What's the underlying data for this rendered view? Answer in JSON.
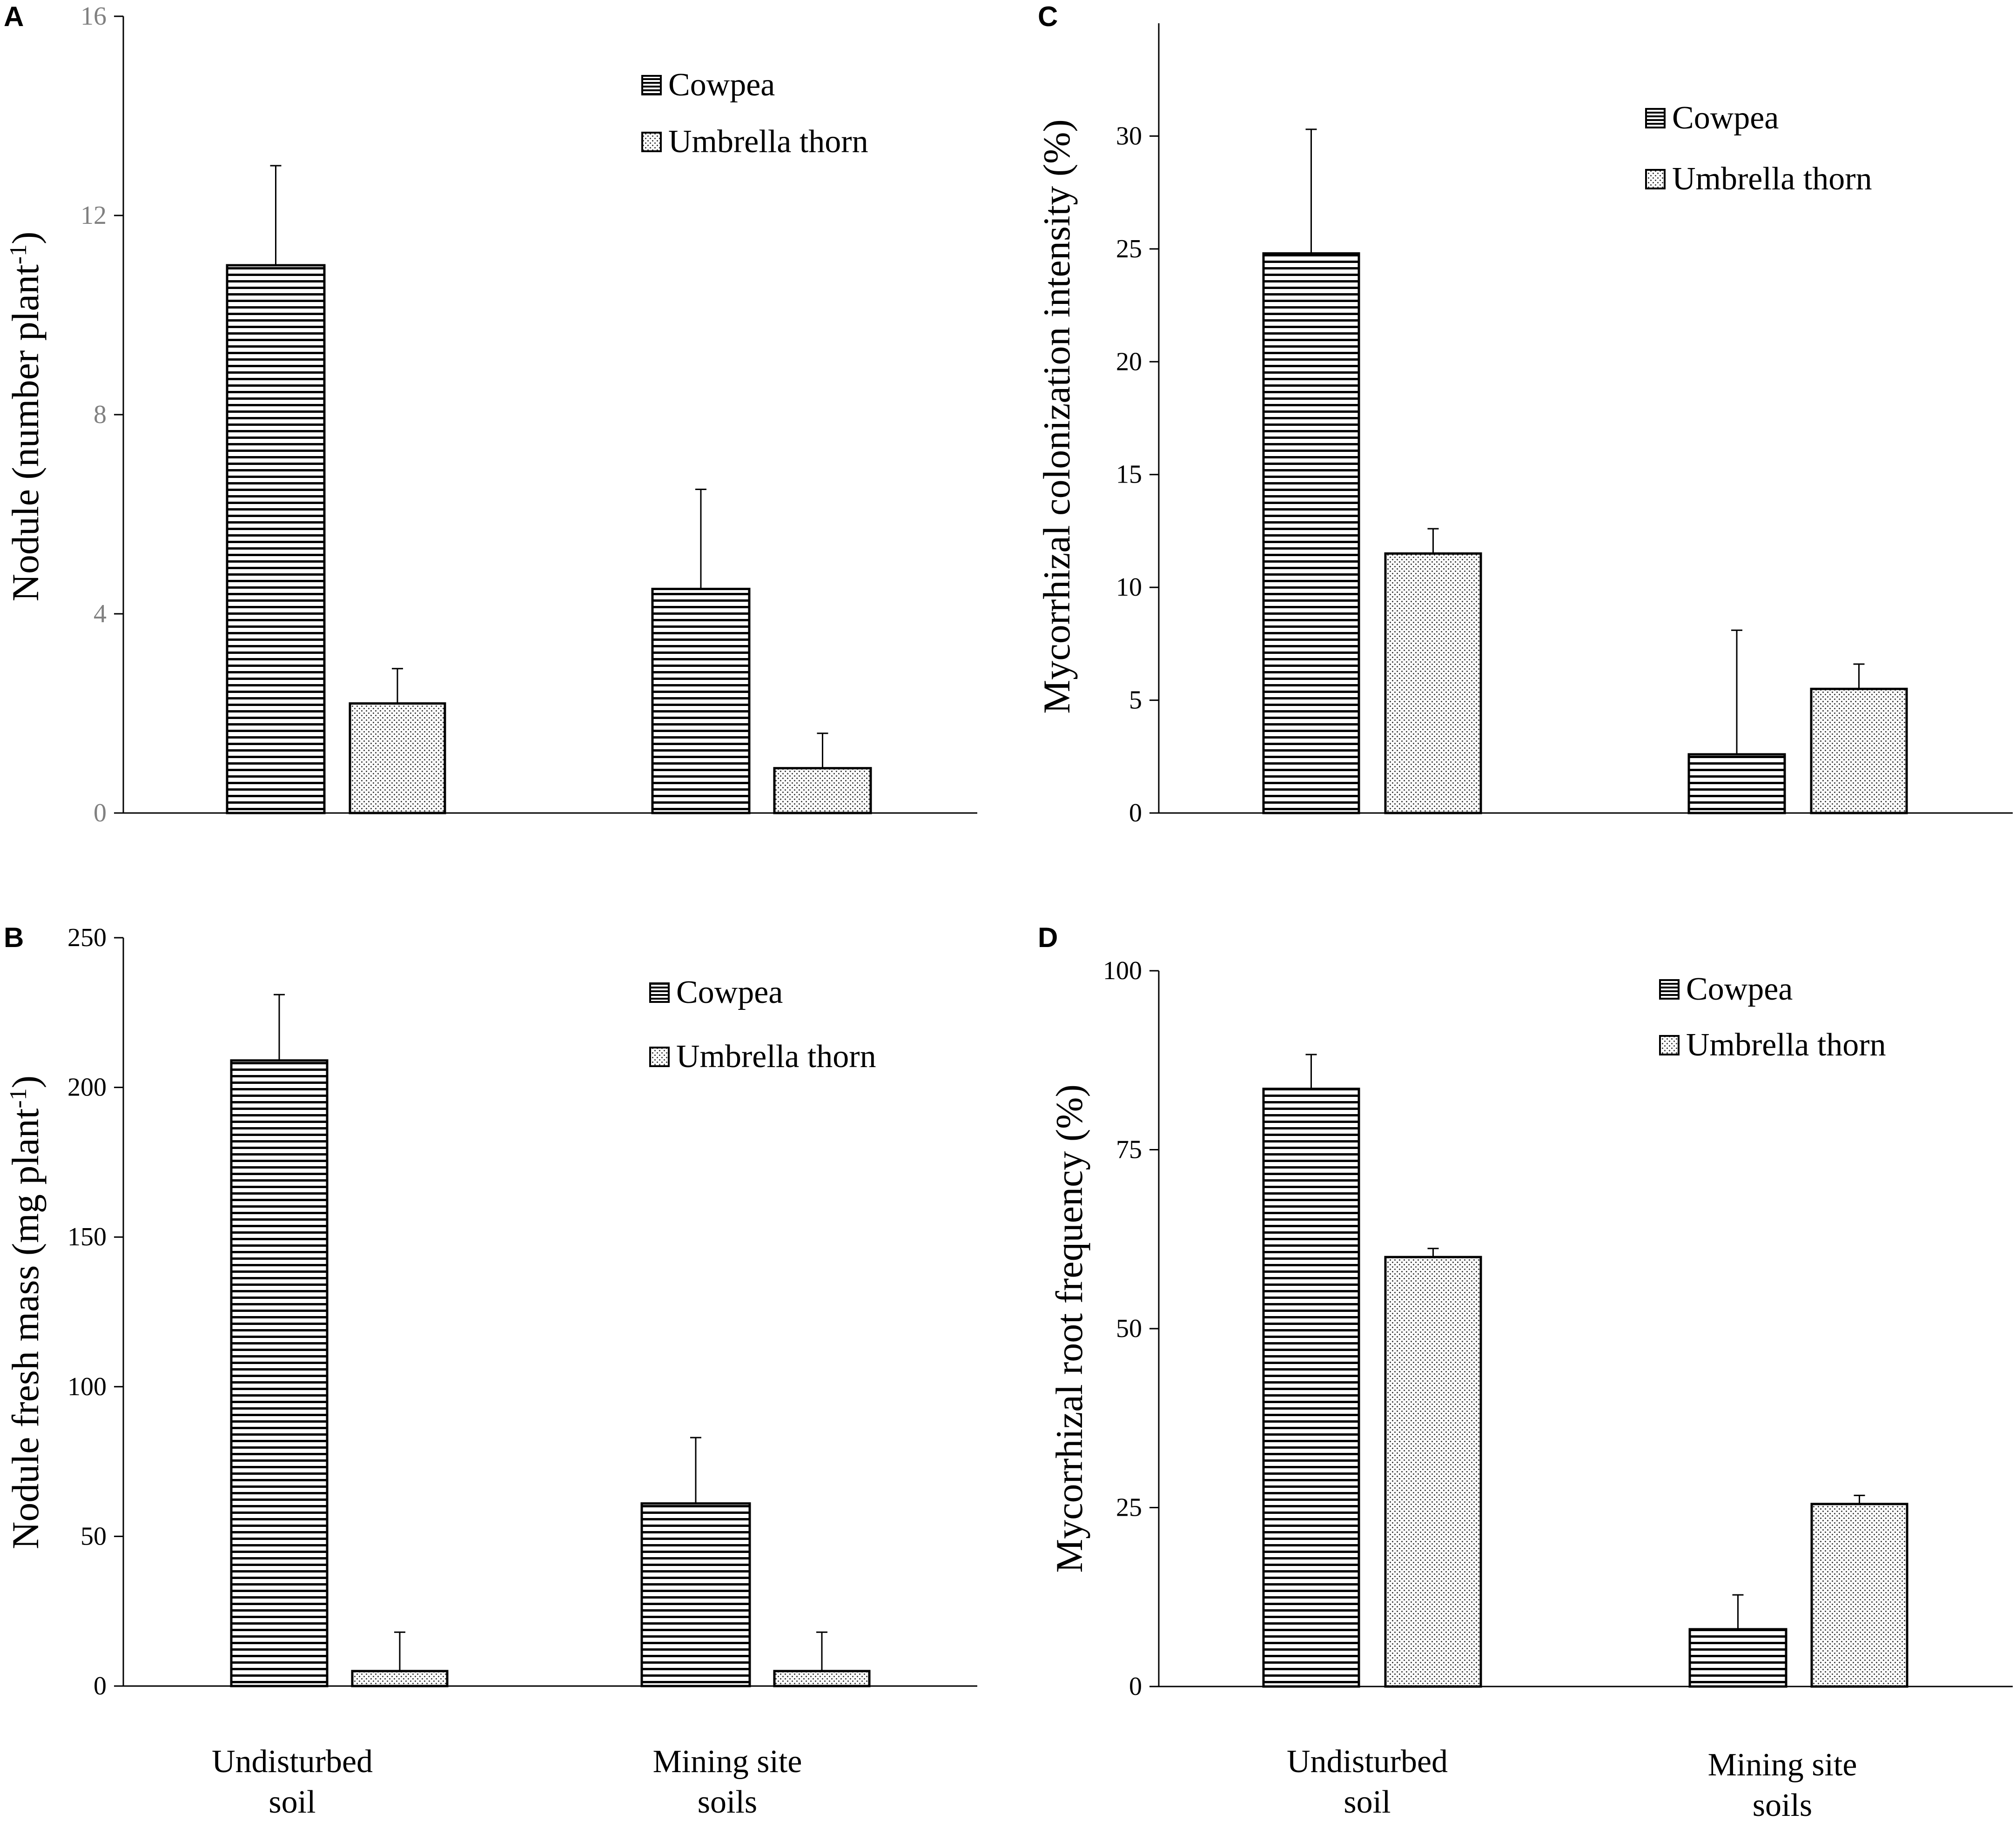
{
  "colors": {
    "axis": "#000000",
    "bar_outline": "#000000",
    "error_bar": "#000000",
    "panel_a_ticks": "#808080",
    "hatch_fill": "#ffffff"
  },
  "chart_data": [
    {
      "panel": "A",
      "type": "bar",
      "ylabel_main": "Nodule (number plant",
      "ylabel_sup": "-1",
      "ylabel_end": ")",
      "categories": [
        "Undisturbed soil",
        "Mining site soils"
      ],
      "ylim": [
        0,
        16
      ],
      "yticks": [
        0,
        4,
        8,
        12,
        16
      ],
      "series": [
        {
          "name": "Cowpea",
          "pattern": "hstripe",
          "values": [
            11.0,
            4.5
          ],
          "errors": [
            2.0,
            2.0
          ]
        },
        {
          "name": "Umbrella thorn",
          "pattern": "dots",
          "values": [
            2.2,
            0.9
          ],
          "errors": [
            0.7,
            0.7
          ]
        }
      ],
      "legend": [
        "Cowpea",
        "Umbrella thorn"
      ]
    },
    {
      "panel": "B",
      "type": "bar",
      "ylabel_main": "Nodule fresh mass (mg plant",
      "ylabel_sup": "-1",
      "ylabel_end": ")",
      "categories": [
        "Undisturbed soil",
        "Mining site soils"
      ],
      "ylim": [
        0,
        250
      ],
      "yticks": [
        0,
        50,
        100,
        150,
        200,
        250
      ],
      "series": [
        {
          "name": "Cowpea",
          "pattern": "hstripe",
          "values": [
            209,
            61
          ],
          "errors": [
            22,
            22
          ]
        },
        {
          "name": "Umbrella thorn",
          "pattern": "dots",
          "values": [
            5,
            5
          ],
          "errors": [
            13,
            13
          ]
        }
      ],
      "legend": [
        "Cowpea",
        "Umbrella thorn"
      ]
    },
    {
      "panel": "C",
      "type": "bar",
      "ylabel_main": "Mycorrhizal colonization intensity (%)",
      "categories": [
        "Undisturbed soil",
        "Mining site soils"
      ],
      "ylim": [
        0,
        35
      ],
      "yticks": [
        0,
        5,
        10,
        15,
        20,
        25,
        30
      ],
      "series": [
        {
          "name": "Cowpea",
          "pattern": "hstripe",
          "values": [
            24.8,
            2.6
          ],
          "errors": [
            5.5,
            5.5
          ]
        },
        {
          "name": "Umbrella thorn",
          "pattern": "dots",
          "values": [
            11.5,
            5.5
          ],
          "errors": [
            1.1,
            1.1
          ]
        }
      ],
      "legend": [
        "Cowpea",
        "Umbrella thorn"
      ]
    },
    {
      "panel": "D",
      "type": "bar",
      "ylabel_main": "Mycorrhizal root frequency (%)",
      "categories": [
        "Undisturbed soil",
        "Mining site soils"
      ],
      "ylim": [
        0,
        100
      ],
      "yticks": [
        0,
        25,
        50,
        75,
        100
      ],
      "series": [
        {
          "name": "Cowpea",
          "pattern": "hstripe",
          "values": [
            83.5,
            8.0
          ],
          "errors": [
            4.8,
            4.8
          ]
        },
        {
          "name": "Umbrella thorn",
          "pattern": "dots",
          "values": [
            60,
            25.5
          ],
          "errors": [
            1.2,
            1.2
          ]
        }
      ],
      "legend": [
        "Cowpea",
        "Umbrella thorn"
      ]
    }
  ],
  "x_category_labels": {
    "left": {
      "line1": "Undisturbed",
      "line2": "soil"
    },
    "right": {
      "line1": "Mining site",
      "line2": "soils"
    }
  }
}
